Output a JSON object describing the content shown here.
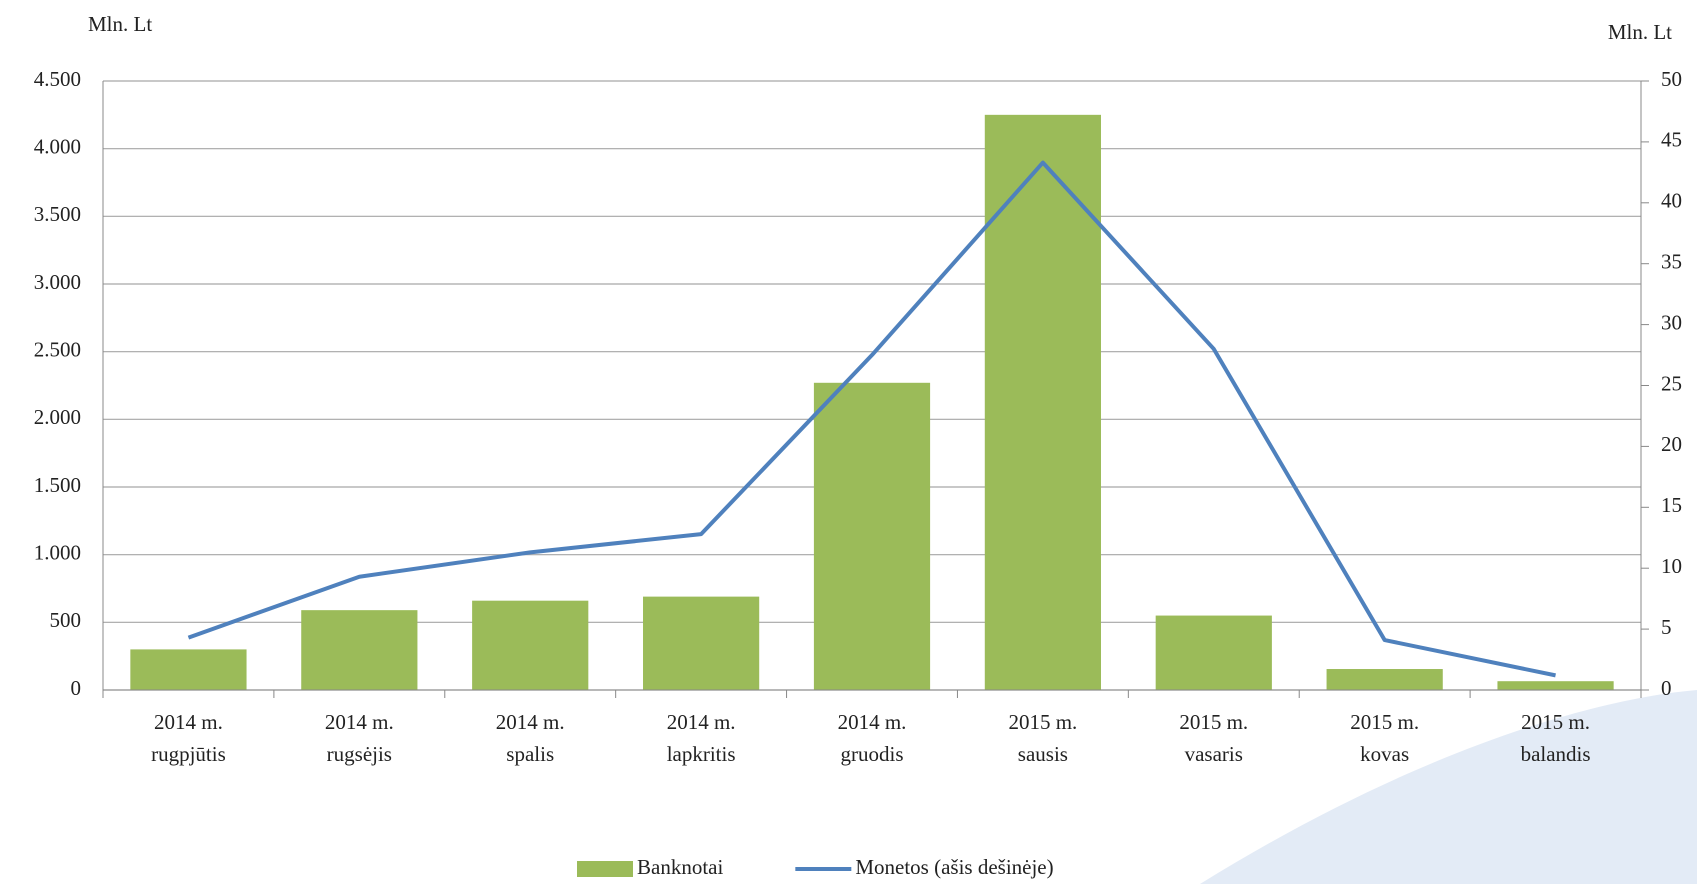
{
  "chart_data": {
    "type": "bar",
    "y_label": "Mln. Lt",
    "y2_label": "Mln. Lt",
    "categories": [
      [
        "2014 m.",
        "rugpjūtis"
      ],
      [
        "2014 m.",
        "rugsėjis"
      ],
      [
        "2014 m.",
        "spalis"
      ],
      [
        "2014 m.",
        "lapkritis"
      ],
      [
        "2014 m.",
        "gruodis"
      ],
      [
        "2015 m.",
        "sausis"
      ],
      [
        "2015 m.",
        "vasaris"
      ],
      [
        "2015 m.",
        "kovas"
      ],
      [
        "2015 m.",
        "balandis"
      ]
    ],
    "series": [
      {
        "name": "Banknotai",
        "type": "bar",
        "color": "#9bbb59",
        "values": [
          300,
          590,
          660,
          690,
          2270,
          4250,
          550,
          155,
          65
        ]
      },
      {
        "name": "Monetos (ašis dešinėje)",
        "type": "line",
        "axis": "y2",
        "color": "#4f81bd",
        "values": [
          4.3,
          9.3,
          11.3,
          12.8,
          27.5,
          43.3,
          28,
          4.1,
          1.2
        ]
      }
    ],
    "ylim": [
      0,
      4500
    ],
    "yticks": [
      0,
      500,
      {
        "value": 1000,
        "label": "1.000"
      },
      {
        "value": 1500,
        "label": "1.500"
      },
      {
        "value": 2000,
        "label": "2.000"
      },
      {
        "value": 2500,
        "label": "2.500"
      },
      {
        "value": 3000,
        "label": "3.000"
      },
      {
        "value": 3500,
        "label": "3.500"
      },
      {
        "value": 4000,
        "label": "4.000"
      },
      {
        "value": 4500,
        "label": "4.500"
      }
    ],
    "y2lim": [
      0,
      50
    ],
    "y2ticks": [
      0,
      5,
      10,
      15,
      20,
      25,
      30,
      35,
      40,
      45,
      50
    ],
    "grid": true,
    "legend": "bottom"
  }
}
